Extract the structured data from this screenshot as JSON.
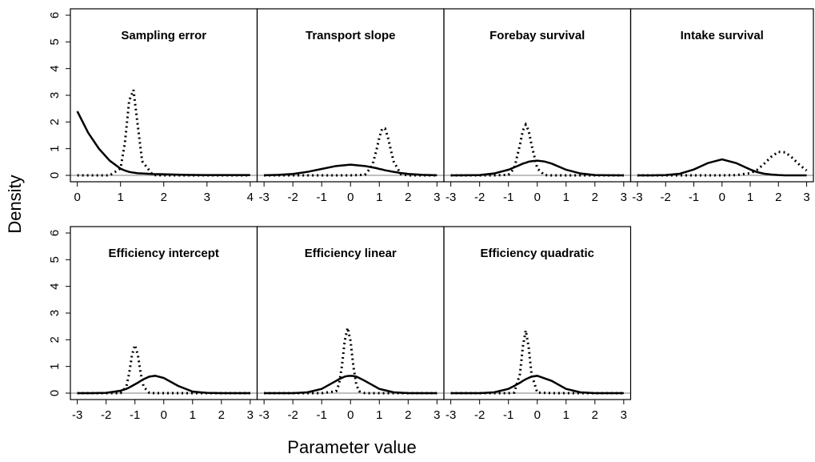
{
  "xlabel": "Parameter value",
  "ylabel": "Density",
  "chart_data": [
    {
      "type": "line",
      "title": "Sampling error",
      "row": 0,
      "col": 0,
      "x": [
        0,
        0.25,
        0.5,
        0.75,
        1,
        1.1,
        1.2,
        1.3,
        1.4,
        1.5,
        1.75,
        2,
        2.5,
        3,
        3.5,
        4
      ],
      "series": [
        {
          "color": "#000000",
          "dash": "solid",
          "values": [
            2.4,
            1.6,
            1.0,
            0.55,
            0.25,
            0.18,
            0.13,
            0.1,
            0.08,
            0.07,
            0.05,
            0.04,
            0.02,
            0.01,
            0.01,
            0.01
          ]
        },
        {
          "color": "#000000",
          "dash": "dotted",
          "values": [
            0,
            0,
            0,
            0,
            0.26,
            1.2,
            2.8,
            3.2,
            1.85,
            0.53,
            0.01,
            0,
            0,
            0,
            0,
            0
          ]
        }
      ],
      "xlim": [
        -0.16,
        4.16
      ],
      "xticks": [
        0,
        1,
        2,
        3,
        4
      ],
      "ylim": [
        -0.24,
        6.24
      ],
      "yticks": [
        0,
        1,
        2,
        3,
        4,
        5,
        6
      ],
      "hline": 0,
      "hline_color": "#aaaaaa"
    },
    {
      "type": "line",
      "title": "Transport slope",
      "row": 0,
      "col": 1,
      "x": [
        -3,
        -2.5,
        -2,
        -1.5,
        -1,
        -0.5,
        0,
        0.5,
        0.75,
        0.9,
        1,
        1.1,
        1.2,
        1.3,
        1.4,
        1.5,
        1.75,
        2,
        2.5,
        3
      ],
      "series": [
        {
          "color": "#000000",
          "dash": "solid",
          "values": [
            0.004,
            0.018,
            0.054,
            0.13,
            0.24,
            0.35,
            0.4,
            0.35,
            0.3,
            0.27,
            0.24,
            0.22,
            0.19,
            0.17,
            0.15,
            0.13,
            0.086,
            0.054,
            0.018,
            0.004
          ]
        },
        {
          "color": "#000000",
          "dash": "dotted",
          "values": [
            0,
            0,
            0,
            0,
            0,
            0,
            0,
            0.02,
            0.35,
            0.94,
            1.42,
            1.75,
            1.75,
            1.42,
            0.94,
            0.51,
            0.04,
            0,
            0,
            0
          ]
        }
      ],
      "xlim": [
        -3.24,
        3.24
      ],
      "xticks": [
        -3,
        -2,
        -1,
        0,
        1,
        2,
        3
      ],
      "ylim": [
        -0.24,
        6.24
      ],
      "hline": 0,
      "hline_color": "#aaaaaa"
    },
    {
      "type": "line",
      "title": "Forebay survival",
      "row": 0,
      "col": 2,
      "x": [
        -3,
        -2.5,
        -2,
        -1.5,
        -1,
        -0.8,
        -0.6,
        -0.5,
        -0.4,
        -0.3,
        -0.2,
        0,
        0.25,
        0.5,
        1,
        1.5,
        2,
        2.5,
        3
      ],
      "series": [
        {
          "color": "#000000",
          "dash": "solid",
          "values": [
            0,
            0.002,
            0.013,
            0.07,
            0.21,
            0.3,
            0.39,
            0.44,
            0.47,
            0.51,
            0.53,
            0.55,
            0.52,
            0.44,
            0.21,
            0.07,
            0.013,
            0.002,
            0
          ]
        },
        {
          "color": "#000000",
          "dash": "dotted",
          "values": [
            0,
            0,
            0,
            0,
            0.02,
            0.26,
            1.15,
            1.68,
            1.9,
            1.68,
            1.15,
            0.26,
            0.01,
            0,
            0,
            0,
            0,
            0,
            0
          ]
        }
      ],
      "xlim": [
        -3.24,
        3.24
      ],
      "xticks": [
        -3,
        -2,
        -1,
        0,
        1,
        2,
        3
      ],
      "ylim": [
        -0.24,
        6.24
      ],
      "hline": 0,
      "hline_color": "#aaaaaa"
    },
    {
      "type": "line",
      "title": "Intake survival",
      "row": 0,
      "col": 3,
      "x": [
        -3,
        -2.5,
        -2,
        -1.5,
        -1,
        -0.5,
        0,
        0.5,
        1,
        1.25,
        1.5,
        1.75,
        2,
        2.25,
        2.5,
        2.75,
        3
      ],
      "series": [
        {
          "color": "#000000",
          "dash": "solid",
          "values": [
            0,
            0,
            0.01,
            0.06,
            0.22,
            0.46,
            0.6,
            0.46,
            0.22,
            0.12,
            0.06,
            0.03,
            0.01,
            0,
            0,
            0,
            0
          ]
        },
        {
          "color": "#000000",
          "dash": "dotted",
          "values": [
            0,
            0,
            0,
            0,
            0,
            0,
            0,
            0.01,
            0.08,
            0.21,
            0.44,
            0.7,
            0.88,
            0.86,
            0.65,
            0.39,
            0.18
          ]
        }
      ],
      "xlim": [
        -3.24,
        3.24
      ],
      "xticks": [
        -3,
        -2,
        -1,
        0,
        1,
        2,
        3
      ],
      "ylim": [
        -0.24,
        6.24
      ],
      "hline": 0,
      "hline_color": "#aaaaaa"
    },
    {
      "type": "line",
      "title": "Efficiency intercept",
      "row": 1,
      "col": 0,
      "x": [
        -3,
        -2.5,
        -2,
        -1.5,
        -1.3,
        -1.2,
        -1.1,
        -1,
        -0.9,
        -0.8,
        -0.7,
        -0.5,
        -0.3,
        0,
        0.5,
        1,
        1.5,
        2,
        2.5,
        3
      ],
      "series": [
        {
          "color": "#000000",
          "dash": "solid",
          "values": [
            0,
            0,
            0.01,
            0.09,
            0.16,
            0.21,
            0.27,
            0.33,
            0.39,
            0.46,
            0.52,
            0.62,
            0.65,
            0.57,
            0.27,
            0.06,
            0.01,
            0,
            0,
            0
          ]
        },
        {
          "color": "#000000",
          "dash": "dotted",
          "values": [
            0,
            0,
            0,
            0,
            0.24,
            0.74,
            1.44,
            1.8,
            1.44,
            0.74,
            0.24,
            0.01,
            0,
            0,
            0,
            0,
            0,
            0,
            0,
            0
          ]
        }
      ],
      "xlim": [
        -3.24,
        3.24
      ],
      "xticks": [
        -3,
        -2,
        -1,
        0,
        1,
        2,
        3
      ],
      "ylim": [
        -0.24,
        6.24
      ],
      "yticks": [
        0,
        1,
        2,
        3,
        4,
        5,
        6
      ],
      "hline": 0,
      "hline_color": "#aaaaaa"
    },
    {
      "type": "line",
      "title": "Efficiency linear",
      "row": 1,
      "col": 1,
      "x": [
        -3,
        -2.5,
        -2,
        -1.5,
        -1,
        -0.5,
        -0.4,
        -0.3,
        -0.2,
        -0.1,
        0,
        0.1,
        0.2,
        0.3,
        0.5,
        1,
        1.5,
        2,
        2.5,
        3
      ],
      "series": [
        {
          "color": "#000000",
          "dash": "solid",
          "values": [
            0,
            0,
            0,
            0.03,
            0.16,
            0.46,
            0.52,
            0.57,
            0.62,
            0.64,
            0.65,
            0.64,
            0.62,
            0.57,
            0.46,
            0.16,
            0.03,
            0,
            0,
            0
          ]
        },
        {
          "color": "#000000",
          "dash": "dotted",
          "values": [
            0,
            0,
            0,
            0,
            0,
            0.07,
            0.33,
            1.0,
            1.96,
            2.45,
            1.96,
            1.0,
            0.33,
            0.07,
            0,
            0,
            0,
            0,
            0,
            0
          ]
        }
      ],
      "xlim": [
        -3.24,
        3.24
      ],
      "xticks": [
        -3,
        -2,
        -1,
        0,
        1,
        2,
        3
      ],
      "ylim": [
        -0.24,
        6.24
      ],
      "hline": 0,
      "hline_color": "#aaaaaa"
    },
    {
      "type": "line",
      "title": "Efficiency quadratic",
      "row": 1,
      "col": 2,
      "x": [
        -3,
        -2.5,
        -2,
        -1.5,
        -1,
        -0.8,
        -0.6,
        -0.5,
        -0.4,
        -0.3,
        -0.2,
        0,
        0.5,
        1,
        1.5,
        2,
        2.5,
        3
      ],
      "series": [
        {
          "color": "#000000",
          "dash": "solid",
          "values": [
            0,
            0,
            0,
            0.03,
            0.16,
            0.27,
            0.39,
            0.46,
            0.52,
            0.57,
            0.62,
            0.65,
            0.46,
            0.16,
            0.03,
            0,
            0,
            0
          ]
        },
        {
          "color": "#000000",
          "dash": "dotted",
          "values": [
            0,
            0,
            0,
            0,
            0,
            0.02,
            0.72,
            1.74,
            2.35,
            1.74,
            0.72,
            0.02,
            0,
            0,
            0,
            0,
            0,
            0
          ]
        }
      ],
      "xlim": [
        -3.24,
        3.24
      ],
      "xticks": [
        -3,
        -2,
        -1,
        0,
        1,
        2,
        3
      ],
      "ylim": [
        -0.24,
        6.24
      ],
      "hline": 0,
      "hline_color": "#aaaaaa"
    }
  ]
}
